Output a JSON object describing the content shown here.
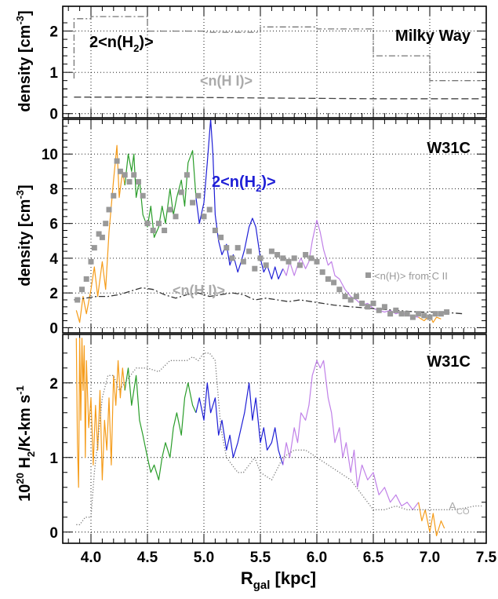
{
  "colors": {
    "orange": "#f59c1a",
    "green": "#2a9d2a",
    "blue": "#1f1fd6",
    "violet": "#c080e8",
    "gray": "#999999",
    "black": "#000000"
  },
  "chart_data": [
    {
      "type": "line",
      "title": "Milky Way",
      "ylabel": "density [cm",
      "ylabel_sup": "-3",
      "ylabel_end": "]",
      "xlim": [
        3.75,
        7.5
      ],
      "ylim": [
        -0.1,
        2.6
      ],
      "yticks": [
        0,
        1,
        2
      ],
      "grid": true,
      "annotations": {
        "h2_prefix": "2<n(H",
        "h2_sub": "2",
        "h2_suffix": ")>",
        "hi": "<n(H I)>"
      },
      "series": [
        {
          "key": "h2",
          "style": "dash-dot",
          "color": "#777777",
          "x": [
            3.85,
            3.85,
            4.0,
            4.0,
            4.5,
            4.5,
            5.0,
            5.0,
            5.5,
            5.5,
            6.0,
            6.0,
            6.5,
            6.5,
            7.0,
            7.0,
            7.45
          ],
          "y": [
            0.85,
            2.3,
            2.3,
            2.35,
            2.35,
            2.0,
            2.0,
            1.97,
            1.97,
            2.1,
            2.1,
            2.05,
            2.05,
            1.4,
            1.4,
            0.8,
            0.8
          ]
        },
        {
          "key": "hi",
          "style": "dashed",
          "color": "#444444",
          "x": [
            3.85,
            4.5,
            5.0,
            5.5,
            6.0,
            6.5,
            7.0,
            7.45
          ],
          "y": [
            0.4,
            0.4,
            0.39,
            0.38,
            0.37,
            0.36,
            0.36,
            0.36
          ]
        }
      ]
    },
    {
      "type": "line",
      "title": "W31C",
      "ylabel": "density [cm",
      "ylabel_sup": "-3",
      "ylabel_end": "]",
      "xlim": [
        3.75,
        7.5
      ],
      "ylim": [
        -0.3,
        12.0
      ],
      "yticks": [
        0,
        2,
        4,
        6,
        8,
        10
      ],
      "grid": true,
      "annotations": {
        "h2_prefix": "2<n(H",
        "h2_sub": "2",
        "h2_suffix": ")>",
        "hi": "<n(H I)>",
        "cii": "<n(H)> from C II"
      },
      "series": [
        {
          "key": "h2",
          "color": "#f59c1a",
          "x": [
            3.87,
            3.9,
            3.93,
            3.96,
            4.0,
            4.03,
            4.06,
            4.1,
            4.13,
            4.16,
            4.2,
            4.23,
            4.25,
            4.28,
            4.3
          ],
          "y": [
            1.0,
            0.3,
            1.8,
            0.8,
            2.2,
            3.5,
            1.8,
            3.8,
            2.2,
            5.5,
            8.5,
            10.5,
            7.5,
            9.0,
            8.2
          ]
        },
        {
          "key": "h2",
          "color": "#2a9d2a",
          "x": [
            4.3,
            4.33,
            4.36,
            4.38,
            4.4,
            4.43,
            4.46,
            4.5,
            4.53,
            4.56,
            4.6,
            4.63,
            4.66,
            4.7,
            4.73,
            4.76,
            4.8,
            4.83,
            4.86,
            4.9,
            4.93
          ],
          "y": [
            8.2,
            10.0,
            9.0,
            10.0,
            7.5,
            8.5,
            6.5,
            5.8,
            7.0,
            5.2,
            5.8,
            7.0,
            6.0,
            8.0,
            6.5,
            7.5,
            8.5,
            7.0,
            9.5,
            10.2,
            7.5
          ]
        },
        {
          "key": "h2",
          "color": "#1f1fd6",
          "x": [
            4.93,
            4.96,
            5.0,
            5.03,
            5.06,
            5.08,
            5.1,
            5.13,
            5.16,
            5.2,
            5.23,
            5.26,
            5.3,
            5.33,
            5.36,
            5.4,
            5.43,
            5.46,
            5.5,
            5.53,
            5.56,
            5.6,
            5.63,
            5.66,
            5.7
          ],
          "y": [
            7.5,
            6.0,
            7.2,
            9.5,
            12.0,
            10.0,
            6.5,
            5.0,
            4.2,
            4.8,
            3.6,
            4.2,
            3.2,
            3.8,
            4.5,
            5.8,
            6.3,
            5.8,
            4.0,
            3.2,
            3.6,
            2.8,
            3.5,
            2.8,
            3.4
          ]
        },
        {
          "key": "h2",
          "color": "#c080e8",
          "x": [
            5.7,
            5.73,
            5.76,
            5.8,
            5.83,
            5.86,
            5.9,
            5.93,
            5.96,
            6.0,
            6.03,
            6.06,
            6.1,
            6.13,
            6.16,
            6.2,
            6.25,
            6.3,
            6.35,
            6.4,
            6.45,
            6.5,
            6.55,
            6.6,
            6.65,
            6.7,
            6.75,
            6.8,
            6.9
          ],
          "y": [
            3.4,
            3.0,
            3.8,
            3.0,
            3.6,
            4.0,
            3.4,
            3.8,
            5.0,
            6.2,
            5.5,
            4.5,
            3.6,
            3.8,
            3.0,
            2.8,
            2.2,
            1.8,
            1.6,
            1.3,
            1.4,
            1.1,
            1.0,
            0.9,
            1.0,
            0.8,
            0.9,
            0.7,
            0.6
          ]
        },
        {
          "key": "h2",
          "color": "#f59c1a",
          "x": [
            6.9,
            6.95,
            7.0,
            7.03,
            7.06,
            7.1
          ],
          "y": [
            0.6,
            0.4,
            0.7,
            0.3,
            0.6,
            0.5
          ]
        },
        {
          "key": "hi",
          "style": "dash-dot",
          "color": "#333333",
          "x": [
            3.85,
            3.95,
            4.05,
            4.15,
            4.25,
            4.35,
            4.45,
            4.55,
            4.65,
            4.75,
            4.85,
            4.95,
            5.05,
            5.15,
            5.25,
            5.35,
            5.45,
            5.55,
            5.65,
            5.75,
            5.85,
            5.95,
            6.05,
            6.15,
            6.3,
            6.5,
            6.7,
            6.9,
            7.1,
            7.3
          ],
          "y": [
            1.6,
            1.7,
            1.8,
            1.8,
            1.9,
            2.1,
            2.3,
            2.2,
            1.9,
            1.7,
            1.9,
            2.0,
            1.8,
            1.9,
            2.0,
            1.9,
            1.6,
            1.7,
            1.6,
            1.5,
            1.6,
            1.5,
            1.4,
            1.3,
            1.2,
            1.1,
            1.0,
            0.9,
            0.9,
            0.8
          ]
        }
      ],
      "points": {
        "key": "cii",
        "color": "#999999",
        "x": [
          3.88,
          3.92,
          3.96,
          4.0,
          4.03,
          4.07,
          4.1,
          4.13,
          4.16,
          4.2,
          4.23,
          4.26,
          4.3,
          4.34,
          4.38,
          4.42,
          4.46,
          4.5,
          4.55,
          4.6,
          4.65,
          4.7,
          4.75,
          4.8,
          4.85,
          4.9,
          4.95,
          5.0,
          5.05,
          5.1,
          5.15,
          5.2,
          5.25,
          5.3,
          5.35,
          5.4,
          5.45,
          5.5,
          5.55,
          5.6,
          5.65,
          5.7,
          5.75,
          5.8,
          5.85,
          5.9,
          5.95,
          6.0,
          6.05,
          6.1,
          6.15,
          6.2,
          6.25,
          6.3,
          6.35,
          6.4,
          6.45,
          6.5,
          6.55,
          6.6,
          6.65,
          6.7,
          6.75,
          6.8,
          6.85,
          6.9,
          6.95,
          7.0,
          7.05,
          7.1,
          7.15
        ],
        "y": [
          1.6,
          2.2,
          2.8,
          3.8,
          4.6,
          5.4,
          5.2,
          6.0,
          6.8,
          7.6,
          9.6,
          9.0,
          8.8,
          8.4,
          8.8,
          8.4,
          7.6,
          6.0,
          5.6,
          6.0,
          5.6,
          6.8,
          6.4,
          7.8,
          8.8,
          7.2,
          7.6,
          6.4,
          6.8,
          5.6,
          5.2,
          4.6,
          4.0,
          4.6,
          3.8,
          4.4,
          3.4,
          4.0,
          3.6,
          4.4,
          4.2,
          4.0,
          3.8,
          4.0,
          3.6,
          4.2,
          4.0,
          3.8,
          3.2,
          2.8,
          2.6,
          2.2,
          1.8,
          1.6,
          1.8,
          1.4,
          1.2,
          1.4,
          1.0,
          1.2,
          0.8,
          1.0,
          0.8,
          0.8,
          0.6,
          0.8,
          0.7,
          0.6,
          0.8,
          0.8,
          0.9
        ]
      }
    },
    {
      "type": "line",
      "title": "W31C",
      "ylabel_prefix": "10",
      "ylabel_sup1": "20",
      "ylabel_mid": " H",
      "ylabel_sub": "2",
      "ylabel_end": "/K-km s",
      "ylabel_sup2": "-1",
      "xlabel_main": "R",
      "xlabel_sub": "gal",
      "xlabel_end": " [kpc]",
      "xlim": [
        3.75,
        7.5
      ],
      "ylim": [
        -0.15,
        2.65
      ],
      "yticks": [
        0,
        1,
        2
      ],
      "xticks": [
        4.0,
        4.5,
        5.0,
        5.5,
        6.0,
        6.5,
        7.0,
        7.5
      ],
      "xtick_labels": [
        "4.0",
        "4.5",
        "5.0",
        "5.5",
        "6.0",
        "6.5",
        "7.0",
        "7.5"
      ],
      "grid": true,
      "annotations": {
        "aco_main": "A",
        "aco_sub": "CO"
      },
      "series": [
        {
          "key": "x",
          "color": "#f59c1a",
          "x": [
            3.87,
            3.88,
            3.89,
            3.9,
            3.91,
            3.92,
            3.93,
            3.94,
            3.95,
            3.96,
            3.98,
            4.0,
            4.02,
            4.04,
            4.06,
            4.08,
            4.1,
            4.12,
            4.14,
            4.16,
            4.18,
            4.2,
            4.22,
            4.24,
            4.26,
            4.28,
            4.3
          ],
          "y": [
            2.6,
            1.2,
            0.6,
            2.6,
            1.5,
            2.6,
            1.9,
            2.5,
            1.0,
            2.3,
            1.4,
            1.8,
            0.9,
            1.7,
            1.1,
            1.9,
            0.7,
            1.5,
            1.1,
            1.8,
            0.9,
            2.1,
            1.7,
            2.3,
            1.8,
            2.2,
            1.9
          ]
        },
        {
          "key": "x",
          "color": "#2a9d2a",
          "x": [
            4.3,
            4.33,
            4.36,
            4.4,
            4.43,
            4.46,
            4.5,
            4.53,
            4.56,
            4.6,
            4.63,
            4.66,
            4.7,
            4.73,
            4.76,
            4.8,
            4.83,
            4.86,
            4.9,
            4.93
          ],
          "y": [
            1.9,
            2.2,
            1.7,
            2.1,
            1.5,
            1.3,
            1.0,
            0.8,
            0.9,
            0.7,
            1.0,
            1.2,
            1.0,
            1.4,
            1.6,
            1.3,
            1.8,
            2.0,
            1.7,
            1.6
          ]
        },
        {
          "key": "x",
          "color": "#1f1fd6",
          "x": [
            4.93,
            4.96,
            5.0,
            5.03,
            5.06,
            5.1,
            5.13,
            5.16,
            5.2,
            5.23,
            5.26,
            5.3,
            5.33,
            5.36,
            5.4,
            5.43,
            5.46,
            5.5,
            5.53,
            5.56,
            5.6,
            5.63,
            5.66,
            5.7
          ],
          "y": [
            1.6,
            1.8,
            1.5,
            2.0,
            1.6,
            1.8,
            1.3,
            1.5,
            1.1,
            1.3,
            1.0,
            1.2,
            1.4,
            1.6,
            2.0,
            1.5,
            1.8,
            1.2,
            1.4,
            1.1,
            1.2,
            1.4,
            1.1,
            0.9
          ]
        },
        {
          "key": "x",
          "color": "#c080e8",
          "x": [
            5.7,
            5.73,
            5.76,
            5.8,
            5.83,
            5.86,
            5.9,
            5.93,
            5.96,
            6.0,
            6.03,
            6.06,
            6.1,
            6.13,
            6.16,
            6.2,
            6.23,
            6.26,
            6.3,
            6.33,
            6.36,
            6.4,
            6.45,
            6.5,
            6.55,
            6.6,
            6.65,
            6.7,
            6.75,
            6.8,
            6.85,
            6.9
          ],
          "y": [
            0.9,
            1.2,
            1.0,
            1.4,
            1.2,
            1.6,
            1.5,
            1.7,
            2.1,
            2.3,
            2.2,
            2.3,
            1.8,
            1.6,
            1.2,
            1.4,
            1.0,
            1.2,
            0.8,
            1.1,
            0.6,
            0.9,
            0.7,
            0.8,
            0.5,
            0.6,
            0.4,
            0.5,
            0.35,
            0.4,
            0.3,
            0.4
          ]
        },
        {
          "key": "x",
          "color": "#f59c1a",
          "x": [
            6.9,
            6.93,
            6.96,
            7.0,
            7.03,
            7.06,
            7.1,
            7.13
          ],
          "y": [
            0.4,
            0.15,
            0.3,
            0.0,
            0.25,
            -0.05,
            0.15,
            0.05
          ]
        },
        {
          "key": "aco",
          "style": "dotted",
          "color": "#777777",
          "x": [
            3.87,
            3.9,
            3.95,
            4.0,
            4.03,
            4.06,
            4.1,
            4.15,
            4.2,
            4.25,
            4.3,
            4.35,
            4.4,
            4.5,
            4.6,
            4.7,
            4.8,
            4.85,
            4.9,
            4.95,
            5.0,
            5.05,
            5.1,
            5.15,
            5.2,
            5.25,
            5.3,
            5.35,
            5.4,
            5.45,
            5.5,
            5.6,
            5.7,
            5.8,
            5.9,
            6.0,
            6.1,
            6.2,
            6.3,
            6.4,
            6.5,
            6.6,
            6.7,
            6.8,
            6.9,
            7.0,
            7.1,
            7.2,
            7.3,
            7.4,
            7.47
          ],
          "y": [
            0.1,
            0.1,
            0.2,
            0.2,
            0.8,
            1.2,
            1.8,
            2.1,
            2.1,
            1.9,
            2.0,
            2.1,
            2.2,
            2.2,
            2.15,
            2.3,
            2.3,
            2.3,
            2.35,
            2.3,
            2.4,
            2.4,
            2.3,
            1.4,
            1.0,
            0.9,
            0.8,
            0.8,
            0.9,
            1.0,
            0.8,
            0.7,
            1.0,
            1.1,
            1.1,
            1.0,
            0.9,
            0.8,
            0.7,
            0.5,
            0.3,
            0.3,
            0.35,
            0.3,
            0.3,
            0.3,
            0.3,
            0.3,
            0.32,
            0.35,
            0.35
          ]
        }
      ]
    }
  ]
}
